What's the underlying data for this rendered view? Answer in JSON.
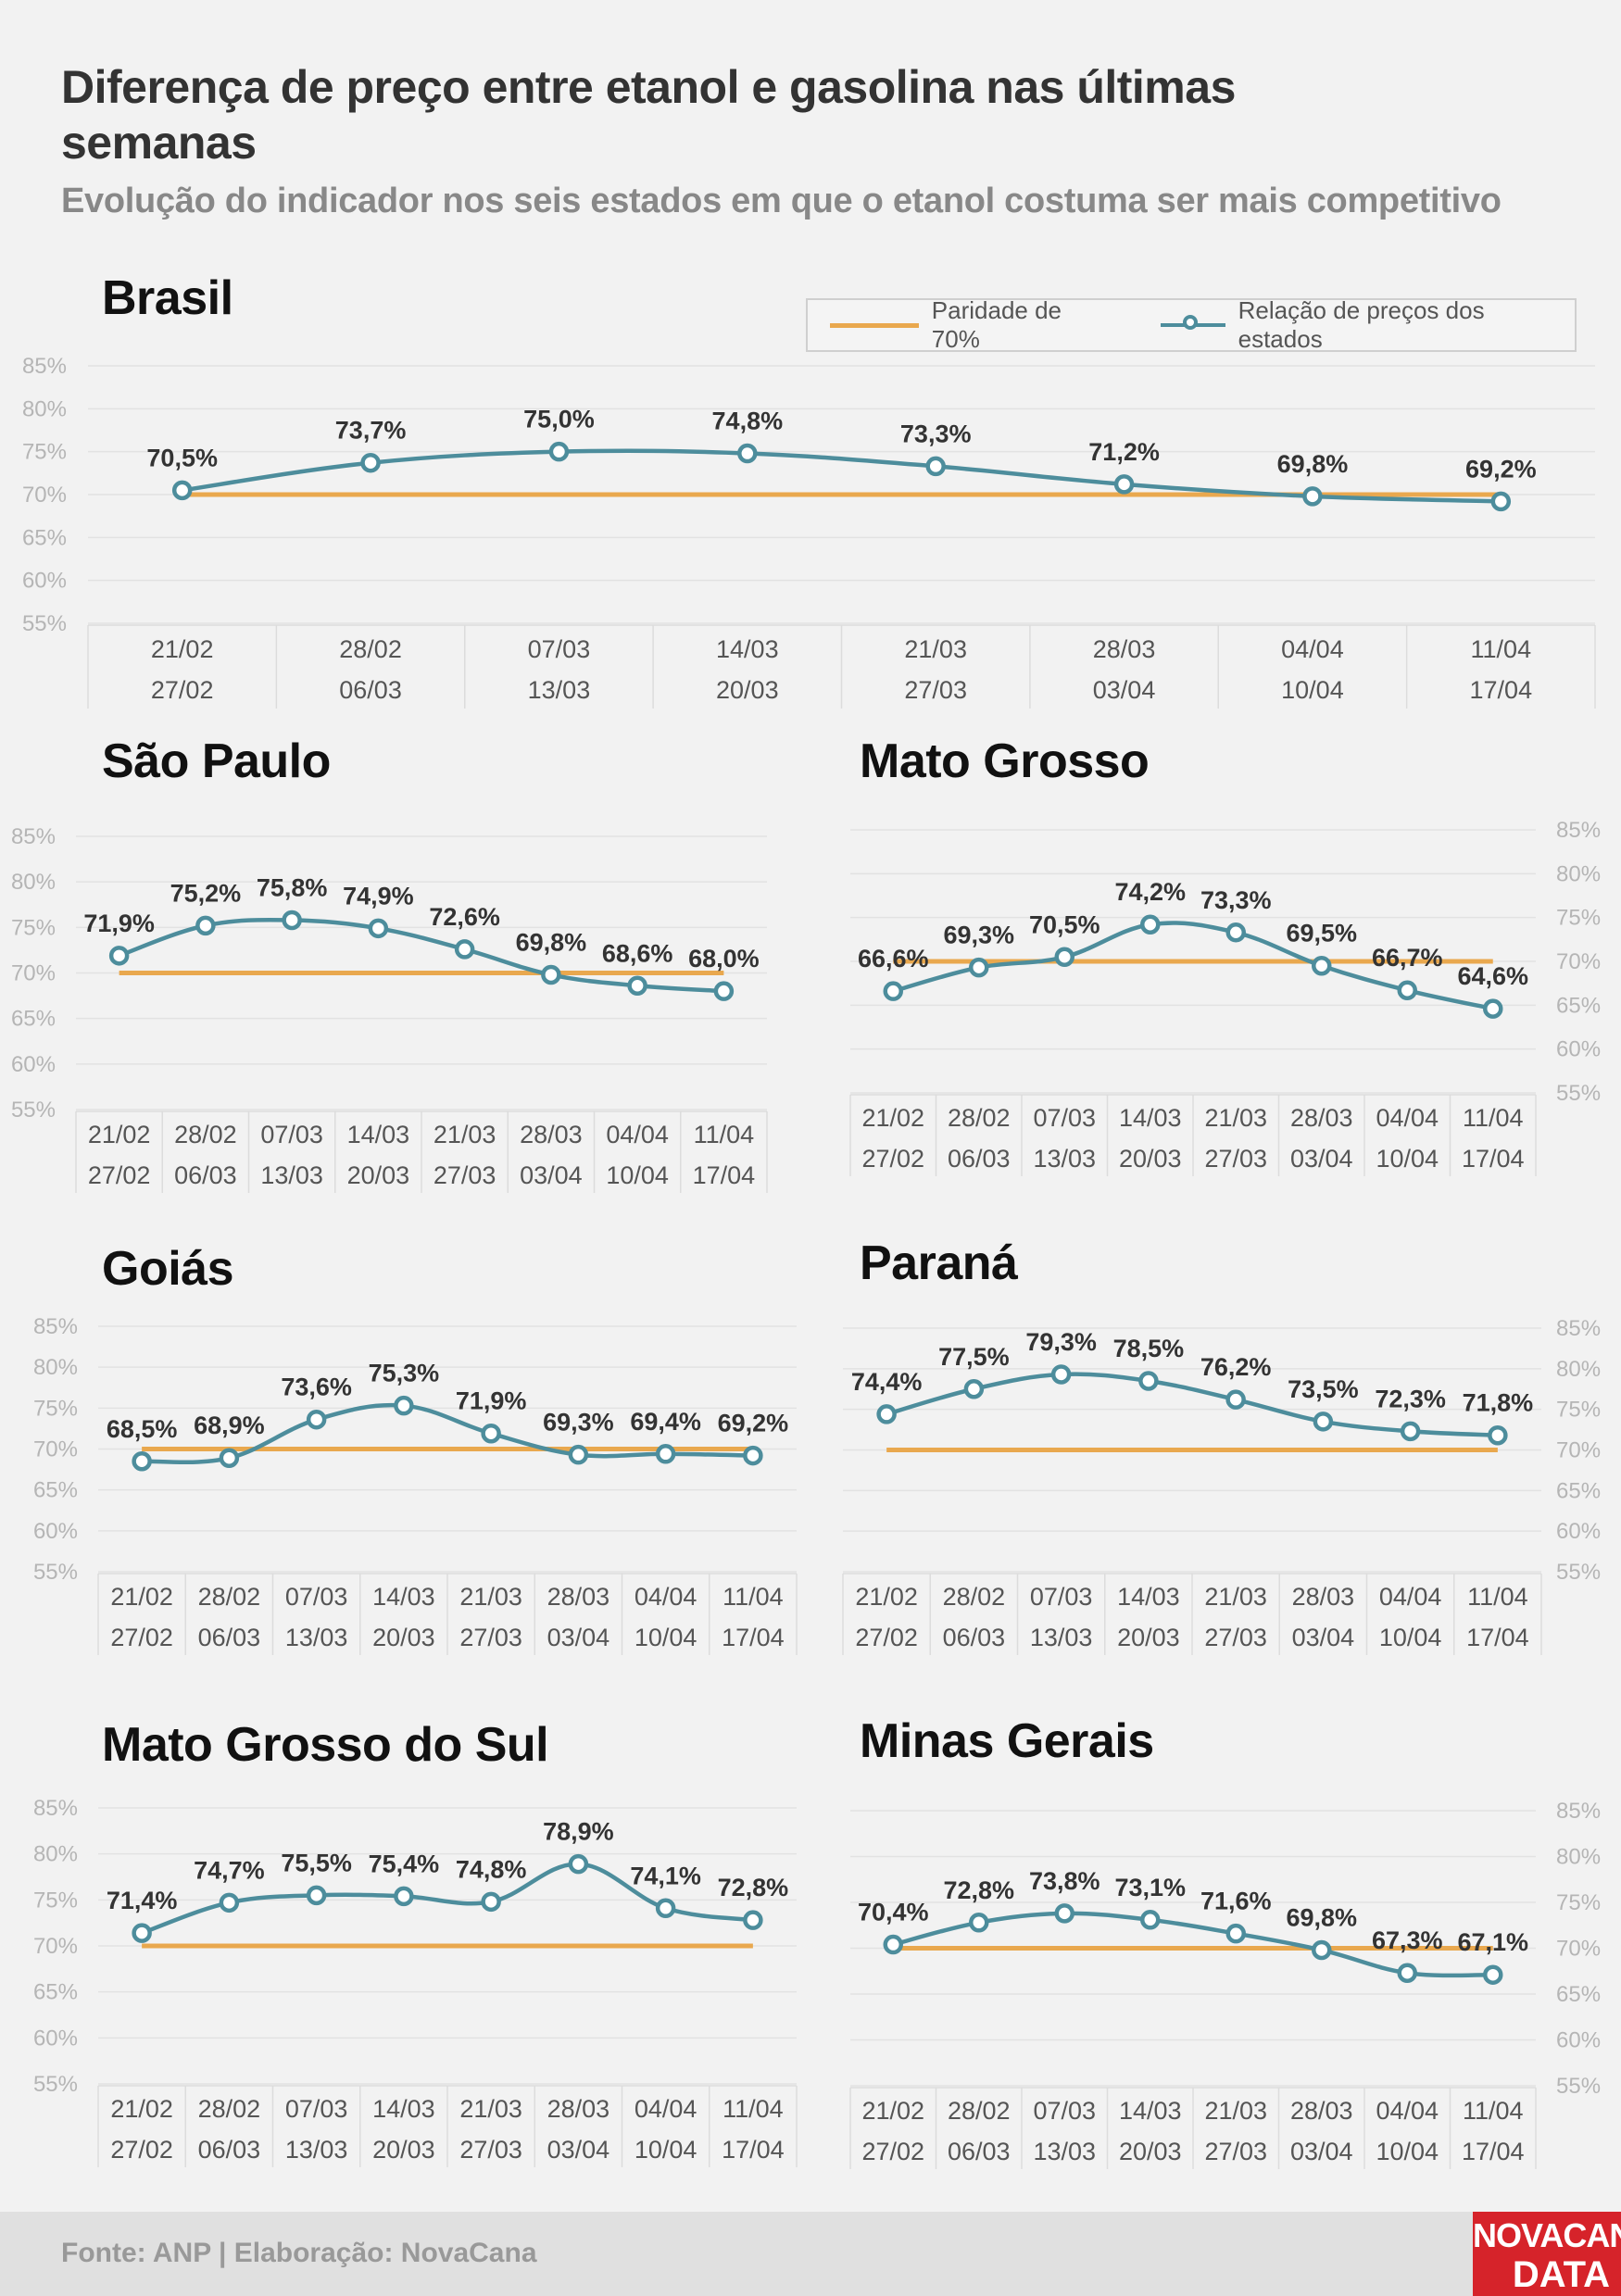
{
  "title": "Diferença de preço entre etanol e gasolina nas últimas semanas",
  "subtitle": "Evolução do indicador nos seis estados em que o etanol costuma ser mais competitivo",
  "legend": {
    "parity_label": "Paridade de 70%",
    "series_label": "Relação de preços dos estados"
  },
  "colors": {
    "series": "#4d8d9c",
    "parity": "#e9a84e",
    "background": "#f2f2f2",
    "logo": "#d6232a"
  },
  "footer": {
    "source": "Fonte: ANP | Elaboração: NovaCana",
    "logo_line1": "NOVACANA",
    "logo_line2": "DATA"
  },
  "chart_data": [
    {
      "type": "line",
      "title": "Brasil",
      "categories_top": [
        "21/02",
        "28/02",
        "07/03",
        "14/03",
        "21/03",
        "28/03",
        "04/04",
        "11/04"
      ],
      "categories_bottom": [
        "27/02",
        "06/03",
        "13/03",
        "20/03",
        "27/03",
        "03/04",
        "10/04",
        "17/04"
      ],
      "values": [
        70.5,
        73.7,
        75.0,
        74.8,
        73.3,
        71.2,
        69.8,
        69.2
      ],
      "labels": [
        "70,5%",
        "73,7%",
        "75,0%",
        "74,8%",
        "73,3%",
        "71,2%",
        "69,8%",
        "69,2%"
      ],
      "parity": 70,
      "ylim": [
        55,
        85
      ],
      "yticks": [
        "85%",
        "80%",
        "75%",
        "70%",
        "65%",
        "60%",
        "55%"
      ],
      "yaxis_side": "left"
    },
    {
      "type": "line",
      "title": "São Paulo",
      "categories_top": [
        "21/02",
        "28/02",
        "07/03",
        "14/03",
        "21/03",
        "28/03",
        "04/04",
        "11/04"
      ],
      "categories_bottom": [
        "27/02",
        "06/03",
        "13/03",
        "20/03",
        "27/03",
        "03/04",
        "10/04",
        "17/04"
      ],
      "values": [
        71.9,
        75.2,
        75.8,
        74.9,
        72.6,
        69.8,
        68.6,
        68.0
      ],
      "labels": [
        "71,9%",
        "75,2%",
        "75,8%",
        "74,9%",
        "72,6%",
        "69,8%",
        "68,6%",
        "68,0%"
      ],
      "parity": 70,
      "ylim": [
        55,
        85
      ],
      "yticks": [
        "85%",
        "80%",
        "75%",
        "70%",
        "65%",
        "60%",
        "55%"
      ],
      "yaxis_side": "left"
    },
    {
      "type": "line",
      "title": "Mato Grosso",
      "categories_top": [
        "21/02",
        "28/02",
        "07/03",
        "14/03",
        "21/03",
        "28/03",
        "04/04",
        "11/04"
      ],
      "categories_bottom": [
        "27/02",
        "06/03",
        "13/03",
        "20/03",
        "27/03",
        "03/04",
        "10/04",
        "17/04"
      ],
      "values": [
        66.6,
        69.3,
        70.5,
        74.2,
        73.3,
        69.5,
        66.7,
        64.6
      ],
      "labels": [
        "66,6%",
        "69,3%",
        "70,5%",
        "74,2%",
        "73,3%",
        "69,5%",
        "66,7%",
        "64,6%"
      ],
      "parity": 70,
      "ylim": [
        55,
        85
      ],
      "yticks": [
        "85%",
        "80%",
        "75%",
        "70%",
        "65%",
        "60%",
        "55%"
      ],
      "yaxis_side": "right"
    },
    {
      "type": "line",
      "title": "Goiás",
      "categories_top": [
        "21/02",
        "28/02",
        "07/03",
        "14/03",
        "21/03",
        "28/03",
        "04/04",
        "11/04"
      ],
      "categories_bottom": [
        "27/02",
        "06/03",
        "13/03",
        "20/03",
        "27/03",
        "03/04",
        "10/04",
        "17/04"
      ],
      "values": [
        68.5,
        68.9,
        73.6,
        75.3,
        71.9,
        69.3,
        69.4,
        69.2
      ],
      "labels": [
        "68,5%",
        "68,9%",
        "73,6%",
        "75,3%",
        "71,9%",
        "69,3%",
        "69,4%",
        "69,2%"
      ],
      "parity": 70,
      "ylim": [
        55,
        85
      ],
      "yticks": [
        "85%",
        "80%",
        "75%",
        "70%",
        "65%",
        "60%",
        "55%"
      ],
      "yaxis_side": "left"
    },
    {
      "type": "line",
      "title": "Paraná",
      "categories_top": [
        "21/02",
        "28/02",
        "07/03",
        "14/03",
        "21/03",
        "28/03",
        "04/04",
        "11/04"
      ],
      "categories_bottom": [
        "27/02",
        "06/03",
        "13/03",
        "20/03",
        "27/03",
        "03/04",
        "10/04",
        "17/04"
      ],
      "values": [
        74.4,
        77.5,
        79.3,
        78.5,
        76.2,
        73.5,
        72.3,
        71.8
      ],
      "labels": [
        "74,4%",
        "77,5%",
        "79,3%",
        "78,5%",
        "76,2%",
        "73,5%",
        "72,3%",
        "71,8%"
      ],
      "parity": 70,
      "ylim": [
        55,
        85
      ],
      "yticks": [
        "85%",
        "80%",
        "75%",
        "70%",
        "65%",
        "60%",
        "55%"
      ],
      "yaxis_side": "right"
    },
    {
      "type": "line",
      "title": "Mato Grosso do Sul",
      "categories_top": [
        "21/02",
        "28/02",
        "07/03",
        "14/03",
        "21/03",
        "28/03",
        "04/04",
        "11/04"
      ],
      "categories_bottom": [
        "27/02",
        "06/03",
        "13/03",
        "20/03",
        "27/03",
        "03/04",
        "10/04",
        "17/04"
      ],
      "values": [
        71.4,
        74.7,
        75.5,
        75.4,
        74.8,
        78.9,
        74.1,
        72.8
      ],
      "labels": [
        "71,4%",
        "74,7%",
        "75,5%",
        "75,4%",
        "74,8%",
        "78,9%",
        "74,1%",
        "72,8%"
      ],
      "parity": 70,
      "ylim": [
        55,
        85
      ],
      "yticks": [
        "85%",
        "80%",
        "75%",
        "70%",
        "65%",
        "60%",
        "55%"
      ],
      "yaxis_side": "left"
    },
    {
      "type": "line",
      "title": "Minas Gerais",
      "categories_top": [
        "21/02",
        "28/02",
        "07/03",
        "14/03",
        "21/03",
        "28/03",
        "04/04",
        "11/04"
      ],
      "categories_bottom": [
        "27/02",
        "06/03",
        "13/03",
        "20/03",
        "27/03",
        "03/04",
        "10/04",
        "17/04"
      ],
      "values": [
        70.4,
        72.8,
        73.8,
        73.1,
        71.6,
        69.8,
        67.3,
        67.1
      ],
      "labels": [
        "70,4%",
        "72,8%",
        "73,8%",
        "73,1%",
        "71,6%",
        "69,8%",
        "67,3%",
        "67,1%"
      ],
      "parity": 70,
      "ylim": [
        55,
        85
      ],
      "yticks": [
        "85%",
        "80%",
        "75%",
        "70%",
        "65%",
        "60%",
        "55%"
      ],
      "yaxis_side": "right"
    }
  ]
}
